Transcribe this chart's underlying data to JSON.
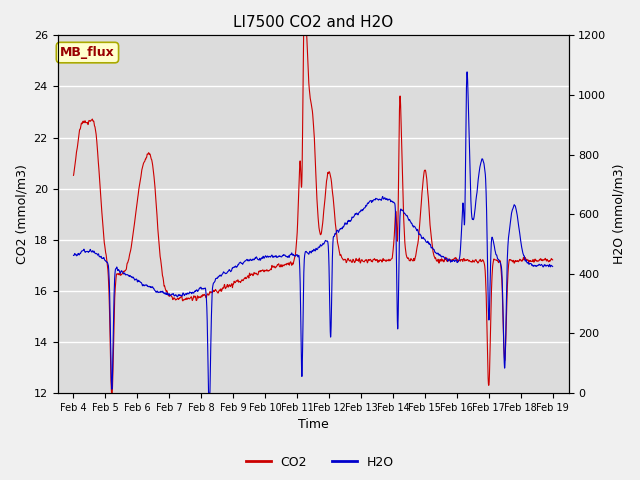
{
  "title": "LI7500 CO2 and H2O",
  "xlabel": "Time",
  "ylabel_left": "CO2 (mmol/m3)",
  "ylabel_right": "H2O (mmol/m3)",
  "co2_color": "#cc0000",
  "h2o_color": "#0000cc",
  "ylim_left": [
    12,
    26
  ],
  "ylim_right": [
    0,
    1200
  ],
  "yticks_left": [
    12,
    14,
    16,
    18,
    20,
    22,
    24,
    26
  ],
  "yticks_right": [
    0,
    200,
    400,
    600,
    800,
    1000,
    1200
  ],
  "x_tick_labels": [
    "Feb 4",
    "Feb 5",
    "Feb 6",
    "Feb 7",
    "Feb 8",
    "Feb 9",
    "Feb 10",
    "Feb 11",
    "Feb 12",
    "Feb 13",
    "Feb 14",
    "Feb 15",
    "Feb 16",
    "Feb 17",
    "Feb 18",
    "Feb 19"
  ],
  "annotation_text": "MB_flux",
  "annotation_bg": "#ffffcc",
  "annotation_border": "#aaaa00",
  "annotation_text_color": "#990000",
  "plot_bg": "#dcdcdc",
  "fig_bg": "#f0f0f0",
  "grid_color": "#ffffff",
  "n_points": 5000
}
